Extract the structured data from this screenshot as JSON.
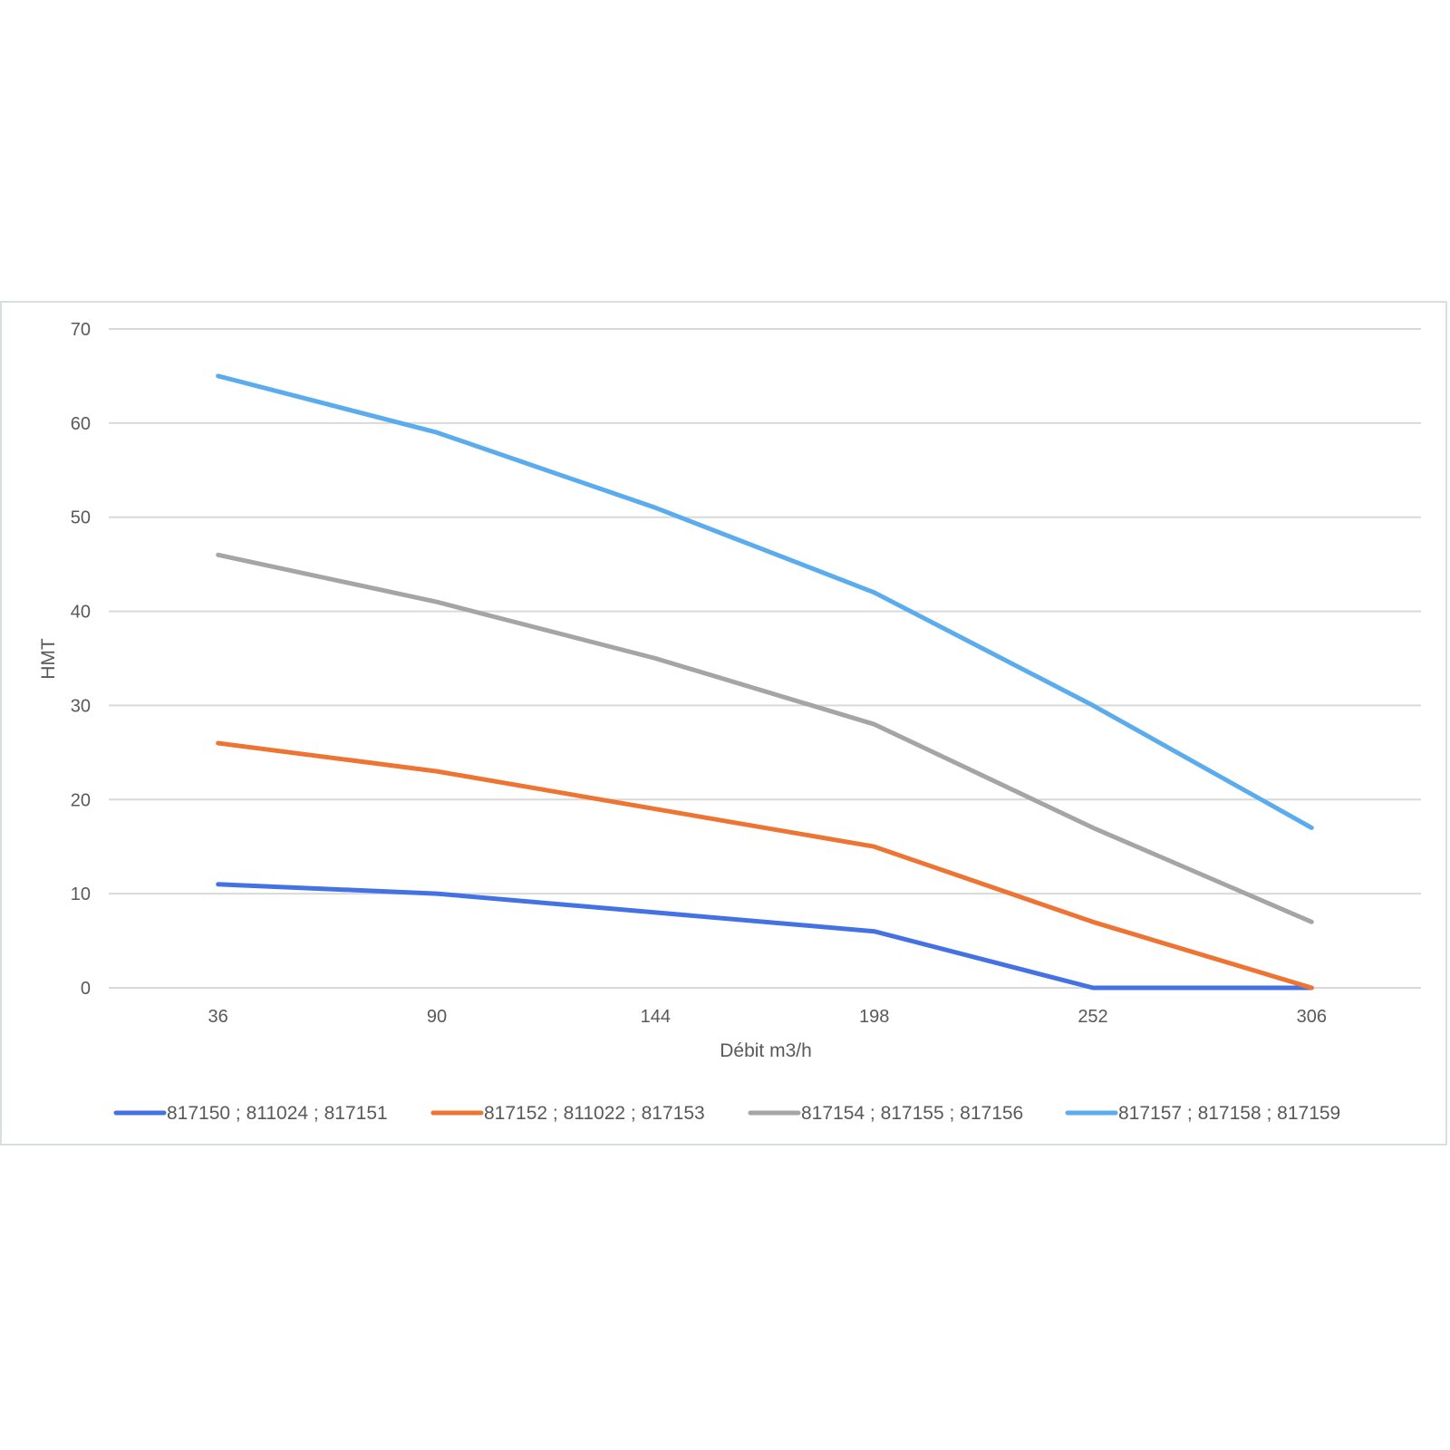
{
  "chart_data": {
    "type": "line",
    "title": "",
    "xlabel": "Débit m3/h",
    "ylabel": "HMT",
    "categories": [
      "36",
      "90",
      "144",
      "198",
      "252",
      "306"
    ],
    "ylim": [
      0,
      70
    ],
    "yticks": [
      "0",
      "10",
      "20",
      "30",
      "40",
      "50",
      "60",
      "70"
    ],
    "grid": true,
    "legend_position": "bottom",
    "series": [
      {
        "name": "817150 ; 811024 ; 817151",
        "color": "#4472e4",
        "values": [
          11,
          10,
          8,
          6,
          0,
          0
        ]
      },
      {
        "name": "817152 ; 811022 ; 817153",
        "color": "#ed7433",
        "values": [
          26,
          23,
          19,
          15,
          7,
          0
        ]
      },
      {
        "name": "817154 ; 817155 ; 817156",
        "color": "#a5a5a5",
        "values": [
          46,
          41,
          35,
          28,
          17,
          7
        ]
      },
      {
        "name": "817157 ; 817158 ; 817159",
        "color": "#5aacec",
        "values": [
          65,
          59,
          51,
          42,
          30,
          17
        ]
      }
    ]
  }
}
